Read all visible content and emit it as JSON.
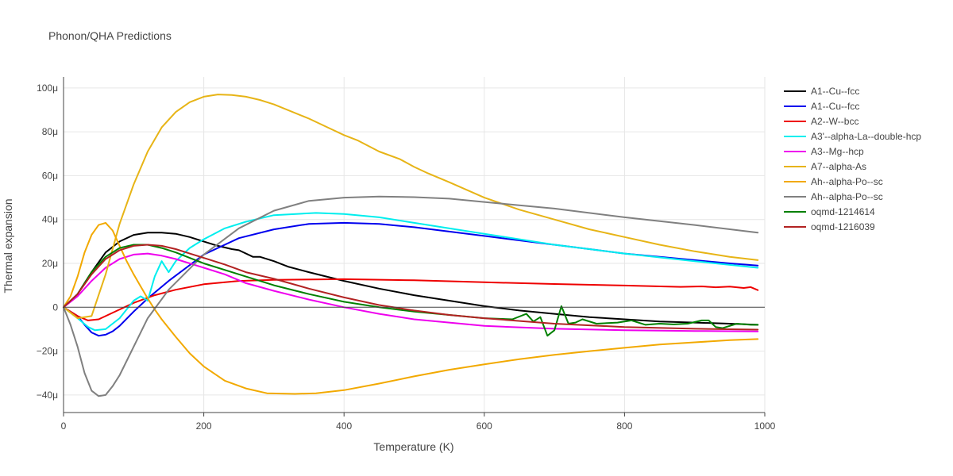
{
  "chart_data": {
    "type": "line",
    "title": "Phonon/QHA Predictions",
    "xlabel": "Temperature (K)",
    "ylabel": "Thermal expansion",
    "xlim": [
      0,
      1000
    ],
    "ylim": [
      -48,
      105
    ],
    "xticks": [
      0,
      200,
      400,
      600,
      800,
      1000
    ],
    "xtick_labels": [
      "0",
      "200",
      "400",
      "600",
      "800",
      "1000"
    ],
    "yticks": [
      -40,
      -20,
      0,
      20,
      40,
      60,
      80,
      100
    ],
    "ytick_labels": [
      "−40μ",
      "−20μ",
      "0",
      "20μ",
      "40μ",
      "60μ",
      "80μ",
      "100μ"
    ],
    "grid": true,
    "legend_position": "right",
    "series": [
      {
        "name": "A1--Cu--fcc",
        "color": "#000000",
        "x": [
          0,
          20,
          40,
          60,
          80,
          100,
          120,
          140,
          160,
          180,
          200,
          220,
          240,
          250,
          270,
          280,
          300,
          320,
          350,
          400,
          450,
          500,
          550,
          600,
          650,
          700,
          750,
          800,
          850,
          900,
          950,
          990
        ],
        "y": [
          0,
          6,
          16,
          25,
          30,
          33,
          34,
          34,
          33.5,
          32,
          30,
          28,
          26.5,
          26,
          23,
          23,
          21,
          18.5,
          16,
          12,
          8.5,
          5.5,
          3,
          0.5,
          -1.5,
          -3,
          -4.5,
          -5.5,
          -6.5,
          -7,
          -7.5,
          -8
        ]
      },
      {
        "name": "A1--Cu--fcc",
        "color": "#0000ee",
        "x": [
          0,
          20,
          30,
          40,
          50,
          60,
          70,
          80,
          100,
          120,
          150,
          200,
          250,
          300,
          350,
          400,
          450,
          500,
          550,
          600,
          650,
          700,
          750,
          800,
          850,
          900,
          950,
          990
        ],
        "y": [
          0,
          -4,
          -8,
          -11.5,
          -13,
          -12.5,
          -11,
          -8.5,
          -2,
          4,
          12,
          24,
          31.5,
          35.5,
          38,
          38.5,
          38,
          36.5,
          34.5,
          32.5,
          30.5,
          28.5,
          26.5,
          24.5,
          23,
          21.5,
          20,
          19
        ]
      },
      {
        "name": "A2--W--bcc",
        "color": "#ee0000",
        "x": [
          0,
          20,
          35,
          50,
          60,
          80,
          100,
          130,
          160,
          200,
          250,
          300,
          400,
          500,
          600,
          700,
          800,
          880,
          910,
          930,
          950,
          970,
          980,
          990
        ],
        "y": [
          0,
          -4,
          -6,
          -5.5,
          -4,
          -1,
          2,
          5.5,
          8,
          10.5,
          12,
          12.5,
          12.8,
          12.3,
          11.4,
          10.6,
          9.9,
          9.3,
          9.5,
          9.1,
          9.4,
          8.8,
          9.2,
          7.8
        ]
      },
      {
        "name": "A3'--alpha-La--double-hcp",
        "color": "#00eeee",
        "x": [
          0,
          20,
          35,
          45,
          60,
          80,
          100,
          110,
          120,
          130,
          140,
          150,
          160,
          180,
          200,
          230,
          260,
          300,
          360,
          400,
          450,
          500,
          600,
          700,
          800,
          900,
          990
        ],
        "y": [
          0,
          -5,
          -9,
          -10.5,
          -10,
          -5,
          3,
          5,
          3,
          14,
          21,
          16,
          21,
          27,
          31,
          36,
          39,
          42,
          43,
          42.5,
          41,
          38.5,
          33.5,
          28.5,
          24.5,
          21,
          18
        ]
      },
      {
        "name": "A3--Mg--hcp",
        "color": "#ee00ee",
        "x": [
          0,
          20,
          40,
          60,
          80,
          100,
          120,
          140,
          160,
          180,
          200,
          230,
          260,
          300,
          350,
          400,
          450,
          500,
          550,
          600,
          700,
          800,
          900,
          990
        ],
        "y": [
          0,
          5,
          12,
          18,
          22,
          24,
          24.5,
          23.5,
          22,
          20,
          18,
          15,
          11,
          7.5,
          3.5,
          0,
          -3,
          -5.5,
          -7,
          -8.5,
          -9.8,
          -10.5,
          -10.8,
          -11
        ]
      },
      {
        "name": "A7--alpha-As",
        "color": "#e7b416",
        "x": [
          0,
          20,
          40,
          60,
          80,
          100,
          120,
          140,
          160,
          180,
          200,
          220,
          240,
          260,
          280,
          300,
          350,
          380,
          400,
          420,
          450,
          480,
          500,
          520,
          550,
          600,
          650,
          700,
          750,
          800,
          850,
          900,
          950,
          990
        ],
        "y": [
          0,
          -5,
          -4,
          15,
          38,
          56,
          71,
          82,
          89,
          93.5,
          96,
          97,
          96.8,
          96,
          94.5,
          92.5,
          86,
          81.5,
          78.5,
          76,
          71,
          67.5,
          64,
          61,
          57,
          50,
          44.5,
          40,
          35.5,
          32,
          28.5,
          25.5,
          23,
          21.5
        ]
      },
      {
        "name": "Ah--alpha-Po--sc",
        "color": "#f2a900",
        "x": [
          0,
          10,
          20,
          30,
          40,
          50,
          60,
          70,
          80,
          90,
          100,
          110,
          120,
          130,
          140,
          160,
          180,
          200,
          230,
          260,
          290,
          330,
          360,
          400,
          450,
          500,
          550,
          600,
          650,
          700,
          750,
          800,
          850,
          900,
          950,
          990
        ],
        "y": [
          0,
          5,
          14,
          25,
          33,
          37.5,
          38.5,
          35,
          28,
          21,
          15,
          9.5,
          4,
          -1,
          -5.5,
          -13.5,
          -21,
          -27,
          -33.5,
          -37,
          -39.2,
          -39.5,
          -39.2,
          -37.8,
          -34.8,
          -31.5,
          -28.5,
          -26,
          -23.7,
          -21.7,
          -20,
          -18.5,
          -17,
          -16,
          -15,
          -14.5
        ]
      },
      {
        "name": "Ah--alpha-Po--sc",
        "color": "#808080",
        "x": [
          0,
          10,
          20,
          30,
          40,
          50,
          60,
          70,
          80,
          100,
          120,
          150,
          200,
          250,
          300,
          350,
          400,
          450,
          500,
          550,
          600,
          700,
          800,
          900,
          990
        ],
        "y": [
          0,
          -8,
          -18,
          -30,
          -38,
          -40.5,
          -40,
          -36,
          -31,
          -18,
          -5,
          8,
          24,
          36,
          44,
          48.5,
          50,
          50.5,
          50.2,
          49.5,
          48,
          45,
          41,
          37.5,
          34
        ]
      },
      {
        "name": "oqmd-1214614",
        "color": "#008000",
        "x": [
          0,
          20,
          40,
          60,
          80,
          100,
          120,
          140,
          160,
          180,
          200,
          250,
          300,
          350,
          400,
          450,
          500,
          550,
          600,
          640,
          660,
          670,
          680,
          690,
          700,
          710,
          720,
          730,
          740,
          760,
          790,
          810,
          830,
          850,
          870,
          890,
          910,
          920,
          930,
          940,
          960,
          980,
          990
        ],
        "y": [
          0,
          6,
          16,
          23,
          27,
          28.5,
          28.5,
          27,
          25,
          22.5,
          20,
          15,
          10,
          6,
          2.5,
          0,
          -2,
          -3.5,
          -5,
          -5.5,
          -3,
          -6.5,
          -4.5,
          -13,
          -10.5,
          0.5,
          -7.5,
          -7,
          -5.5,
          -7.5,
          -7,
          -6,
          -8,
          -7.5,
          -7.8,
          -7.5,
          -6,
          -6,
          -9,
          -9.5,
          -7.5,
          -8,
          -8
        ]
      },
      {
        "name": "oqmd-1216039",
        "color": "#b22222",
        "x": [
          0,
          20,
          40,
          60,
          80,
          100,
          120,
          140,
          160,
          180,
          200,
          230,
          260,
          300,
          350,
          400,
          450,
          500,
          550,
          600,
          700,
          800,
          900,
          990
        ],
        "y": [
          0,
          6,
          15,
          22,
          26,
          28,
          28.5,
          28,
          26.5,
          24.5,
          22.5,
          19.5,
          16,
          13,
          8.5,
          4.5,
          1,
          -1.5,
          -3.5,
          -5,
          -7.5,
          -9,
          -9.8,
          -10.2
        ]
      }
    ]
  }
}
